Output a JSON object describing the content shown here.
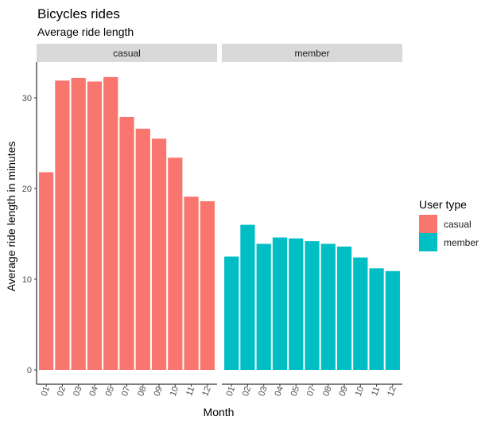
{
  "chart_data": {
    "type": "bar",
    "title": "Bicycles rides",
    "subtitle": "Average ride length",
    "xlabel": "Month",
    "ylabel": "Average ride length in minutes",
    "ylim": [
      0,
      34
    ],
    "yticks": [
      0,
      10,
      20,
      30
    ],
    "grid": false,
    "legend": {
      "title": "User type",
      "placement": "right"
    },
    "categories": [
      "01",
      "02",
      "03",
      "04",
      "05",
      "07",
      "08",
      "09",
      "10",
      "11",
      "12"
    ],
    "facets": [
      {
        "label": "casual",
        "series": "casual",
        "color": "#F8766D",
        "values": [
          21.8,
          31.9,
          32.2,
          31.8,
          32.3,
          27.9,
          26.6,
          25.5,
          23.4,
          19.1,
          18.6
        ]
      },
      {
        "label": "member",
        "series": "member",
        "color": "#00BFC4",
        "values": [
          12.5,
          16.0,
          13.9,
          14.6,
          14.5,
          14.2,
          13.9,
          13.6,
          12.4,
          11.2,
          10.9
        ]
      }
    ],
    "series": [
      {
        "name": "casual",
        "color": "#F8766D"
      },
      {
        "name": "member",
        "color": "#00BFC4"
      }
    ]
  }
}
